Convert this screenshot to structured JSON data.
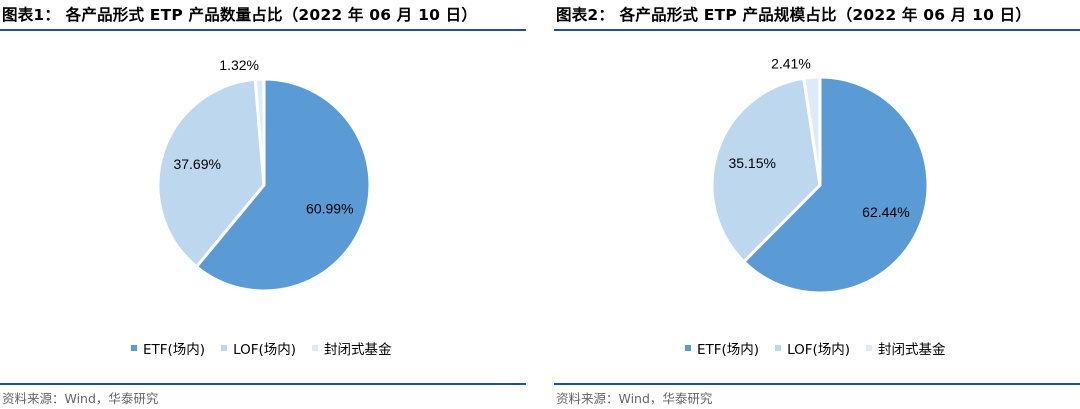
{
  "panels": [
    {
      "title": "图表1：  各产品形式 ETP 产品数量占比（2022 年 06 月 10 日）",
      "source": "资料来源：Wind，华泰研究"
    },
    {
      "title": "图表2：  各产品形式 ETP 产品规模占比（2022 年 06 月 10 日）",
      "source": "资料来源：Wind，华泰研究"
    }
  ],
  "colors": {
    "etf": "#5b9bd5",
    "lof": "#bdd7ee",
    "closed": "#deebf7",
    "rule": "#1f4e9c"
  },
  "chart_data": [
    {
      "type": "pie",
      "title": "各产品形式 ETP 产品数量占比（2022 年 06 月 10 日）",
      "categories": [
        "ETF(场内)",
        "LOF(场内)",
        "封闭式基金"
      ],
      "values": [
        60.99,
        37.69,
        1.32
      ],
      "labels": [
        "60.99%",
        "37.69%",
        "1.32%"
      ],
      "legend": "bottom"
    },
    {
      "type": "pie",
      "title": "各产品形式 ETP 产品规模占比（2022 年 06 月 10 日）",
      "categories": [
        "ETF(场内)",
        "LOF(场内)",
        "封闭式基金"
      ],
      "values": [
        62.44,
        35.15,
        2.41
      ],
      "labels": [
        "62.44%",
        "35.15%",
        "2.41%"
      ],
      "legend": "bottom"
    }
  ]
}
